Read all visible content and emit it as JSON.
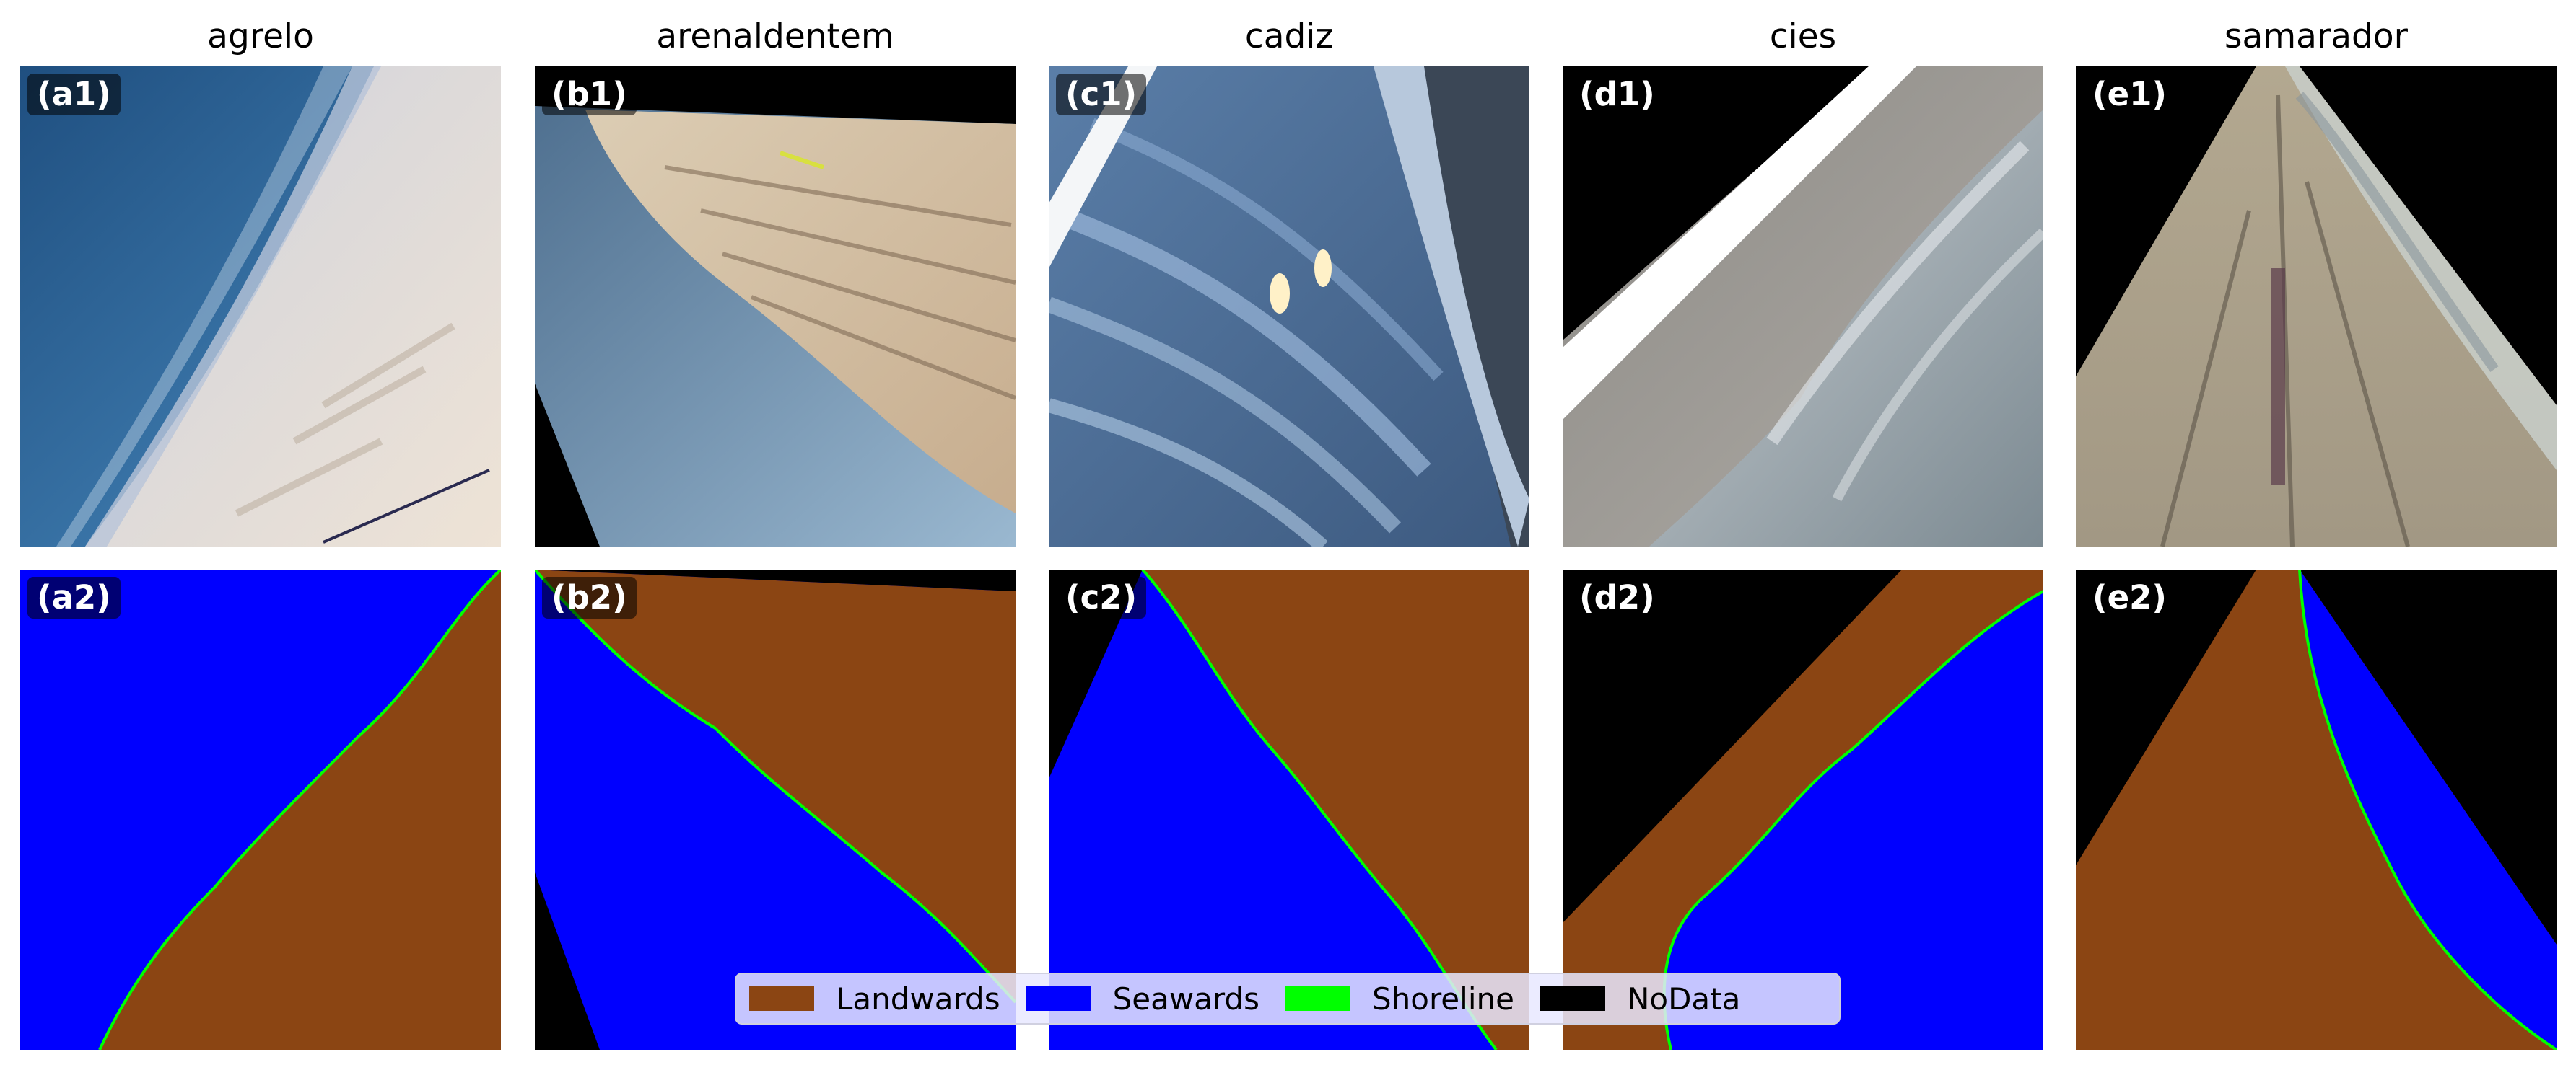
{
  "columns": [
    {
      "title": "agrelo",
      "photo_label": "(a1)",
      "mask_label": "(a2)"
    },
    {
      "title": "arenaldentem",
      "photo_label": "(b1)",
      "mask_label": "(b2)"
    },
    {
      "title": "cadiz",
      "photo_label": "(c1)",
      "mask_label": "(c2)"
    },
    {
      "title": "cies",
      "photo_label": "(d1)",
      "mask_label": "(d2)"
    },
    {
      "title": "samarador",
      "photo_label": "(e1)",
      "mask_label": "(e2)"
    }
  ],
  "legend": {
    "placement": "bottom-center",
    "items": [
      {
        "label": "Landwards",
        "color": "#8B4513"
      },
      {
        "label": "Seawards",
        "color": "#0000FF"
      },
      {
        "label": "Shoreline",
        "color": "#00FF00"
      },
      {
        "label": "NoData",
        "color": "#000000"
      }
    ]
  }
}
